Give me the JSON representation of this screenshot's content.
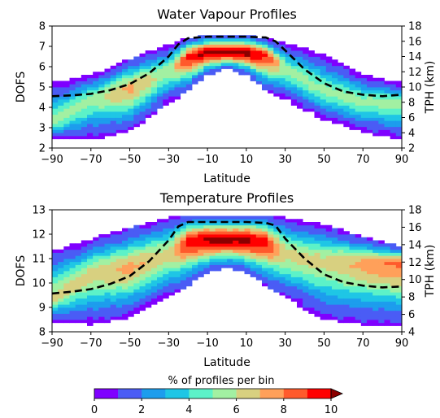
{
  "colorbar": {
    "label": "% of profiles per bin",
    "ticks": [
      "0",
      "2",
      "4",
      "6",
      "8",
      "10"
    ],
    "range": [
      0,
      10
    ],
    "bins": 10,
    "colors": [
      "#7f00ff",
      "#4a5cf5",
      "#1d9ded",
      "#1fc6e5",
      "#5cf2c8",
      "#a2f0a2",
      "#d8d080",
      "#ffa05a",
      "#ff5a2c",
      "#ff0000",
      "#8b0000"
    ]
  },
  "chart_data": [
    {
      "type": "heatmap",
      "title": "Water Vapour Profiles",
      "xlabel": "Latitude",
      "ylabel": "DOFS",
      "ylabel_right": "TPH (km)",
      "xlim": [
        -90,
        90
      ],
      "ylim": [
        2,
        8
      ],
      "ylim_right": [
        2,
        18
      ],
      "xticks": [
        "−90",
        "−70",
        "−50",
        "−30",
        "−10",
        "10",
        "30",
        "50",
        "70",
        "90"
      ],
      "yticks": [
        "2",
        "3",
        "4",
        "5",
        "6",
        "7",
        "8"
      ],
      "yticks_right": [
        "2",
        "4",
        "6",
        "8",
        "10",
        "12",
        "14",
        "16",
        "18"
      ],
      "dofs_band": {
        "latitude": [
          -90,
          -70,
          -50,
          -30,
          -20,
          -10,
          0,
          10,
          20,
          30,
          50,
          70,
          90
        ],
        "lower": [
          2.4,
          2.4,
          2.8,
          4.2,
          4.8,
          5.6,
          5.9,
          5.6,
          4.8,
          4.4,
          3.4,
          2.8,
          2.4
        ],
        "upper": [
          5.2,
          5.6,
          6.4,
          7.1,
          7.4,
          7.6,
          7.6,
          7.6,
          7.4,
          7.2,
          6.6,
          5.6,
          5.2
        ],
        "peak": [
          3.2,
          4.4,
          4.9,
          5.8,
          6.5,
          6.7,
          6.7,
          6.7,
          6.6,
          5.9,
          4.8,
          4.3,
          4.2
        ],
        "peak_percent": [
          5,
          5,
          7,
          5,
          9,
          10,
          10,
          10,
          9,
          5,
          5,
          5,
          5
        ]
      },
      "tph_line": {
        "latitude": [
          -90,
          -80,
          -70,
          -60,
          -50,
          -40,
          -30,
          -25,
          -20,
          -10,
          0,
          10,
          20,
          25,
          30,
          40,
          50,
          60,
          70,
          80,
          90
        ],
        "tph_km": [
          8.8,
          8.9,
          9.1,
          9.6,
          10.4,
          11.8,
          14.0,
          15.6,
          16.4,
          16.6,
          16.6,
          16.6,
          16.5,
          16.0,
          14.8,
          12.3,
          10.5,
          9.4,
          9.0,
          8.8,
          9.0
        ]
      }
    },
    {
      "type": "heatmap",
      "title": "Temperature Profiles",
      "xlabel": "Latitude",
      "ylabel": "DOFS",
      "ylabel_right": "TPH (km)",
      "xlim": [
        -90,
        90
      ],
      "ylim": [
        8,
        13
      ],
      "ylim_right": [
        4,
        18
      ],
      "xticks": [
        "−90",
        "−70",
        "−50",
        "−30",
        "−10",
        "10",
        "30",
        "50",
        "70",
        "90"
      ],
      "yticks": [
        "8",
        "9",
        "10",
        "11",
        "12",
        "13"
      ],
      "yticks_right": [
        "4",
        "6",
        "8",
        "10",
        "12",
        "14",
        "16",
        "18"
      ],
      "dofs_band": {
        "latitude": [
          -90,
          -70,
          -50,
          -30,
          -20,
          -10,
          0,
          10,
          20,
          30,
          50,
          70,
          90
        ],
        "lower": [
          8.4,
          8.3,
          8.6,
          9.4,
          9.9,
          10.4,
          10.6,
          10.4,
          9.9,
          9.4,
          8.5,
          8.3,
          8.3
        ],
        "upper": [
          11.3,
          11.8,
          12.3,
          12.7,
          12.8,
          12.8,
          12.8,
          12.8,
          12.8,
          12.7,
          12.4,
          11.9,
          11.5
        ],
        "peak": [
          9.4,
          10.4,
          10.6,
          11.2,
          11.7,
          11.8,
          11.8,
          11.8,
          11.7,
          11.2,
          10.9,
          10.8,
          10.8
        ],
        "peak_percent": [
          6,
          6,
          7,
          6,
          9,
          10,
          10,
          10,
          9,
          6,
          6,
          7,
          8
        ]
      },
      "tph_line": {
        "latitude": [
          -90,
          -80,
          -70,
          -60,
          -50,
          -40,
          -30,
          -25,
          -20,
          -10,
          0,
          10,
          20,
          25,
          30,
          40,
          50,
          60,
          70,
          80,
          90
        ],
        "tph_km": [
          8.4,
          8.6,
          8.9,
          9.5,
          10.4,
          12.1,
          14.5,
          16.1,
          16.6,
          16.6,
          16.6,
          16.6,
          16.5,
          16.2,
          14.7,
          12.4,
          10.6,
          9.7,
          9.3,
          9.1,
          9.2
        ]
      }
    }
  ]
}
